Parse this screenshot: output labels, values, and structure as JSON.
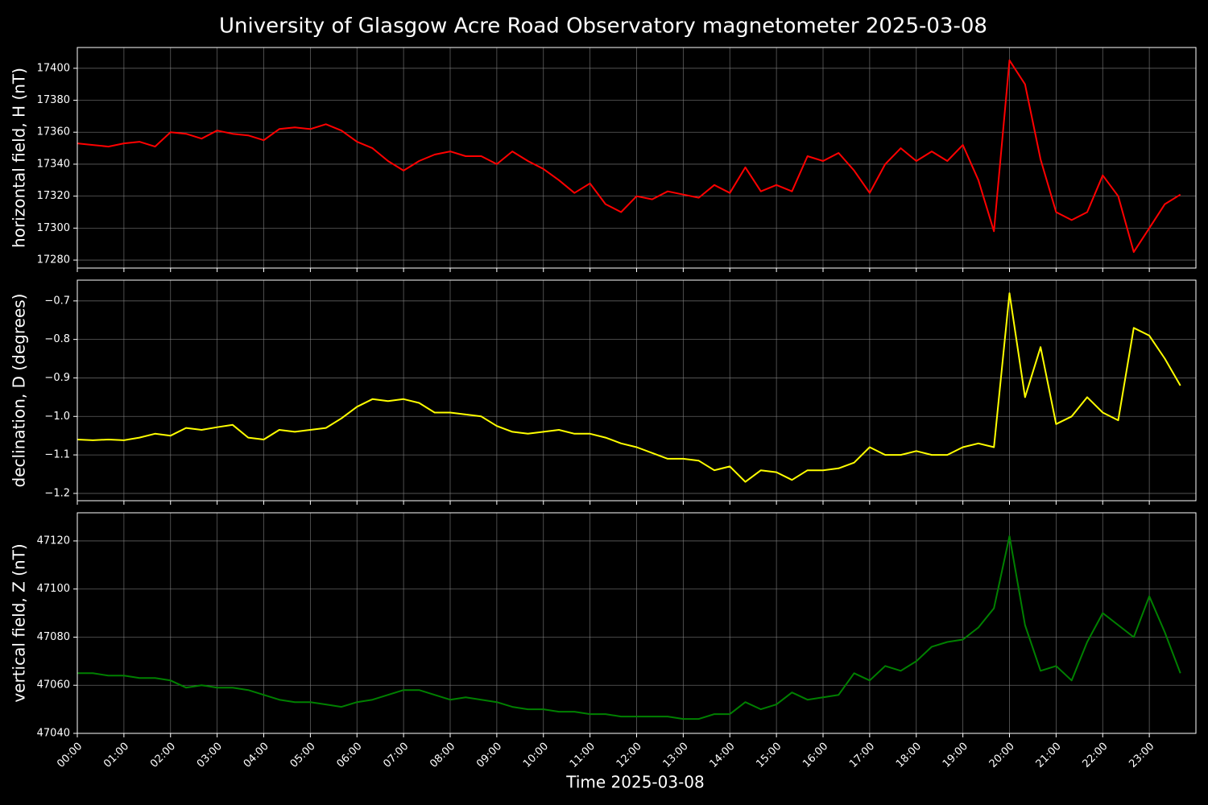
{
  "chart_data": [
    {
      "type": "line",
      "title": "University of Glasgow Acre Road Observatory magnetometer 2025-03-08",
      "y_label": "horizontal field, H (nT)",
      "color": "#ff0000",
      "grid": true,
      "xlim": [
        "00:00",
        "24:00"
      ],
      "ylim": [
        17275,
        17413
      ],
      "yticks": [
        17280,
        17300,
        17320,
        17340,
        17360,
        17380,
        17400
      ],
      "x": [
        "00:00",
        "00:20",
        "00:40",
        "01:00",
        "01:20",
        "01:40",
        "02:00",
        "02:20",
        "02:40",
        "03:00",
        "03:20",
        "03:40",
        "04:00",
        "04:20",
        "04:40",
        "05:00",
        "05:20",
        "05:40",
        "06:00",
        "06:20",
        "06:40",
        "07:00",
        "07:20",
        "07:40",
        "08:00",
        "08:20",
        "08:40",
        "09:00",
        "09:20",
        "09:40",
        "10:00",
        "10:20",
        "10:40",
        "11:00",
        "11:20",
        "11:40",
        "12:00",
        "12:20",
        "12:40",
        "13:00",
        "13:20",
        "13:40",
        "14:00",
        "14:20",
        "14:40",
        "15:00",
        "15:20",
        "15:40",
        "16:00",
        "16:20",
        "16:40",
        "17:00",
        "17:20",
        "17:40",
        "18:00",
        "18:20",
        "18:40",
        "19:00",
        "19:20",
        "19:40",
        "20:00",
        "20:20",
        "20:40",
        "21:00",
        "21:20",
        "21:40",
        "22:00",
        "22:20",
        "22:40",
        "23:00",
        "23:20",
        "23:40"
      ],
      "values": [
        17353,
        17352,
        17351,
        17353,
        17354,
        17351,
        17360,
        17359,
        17356,
        17361,
        17359,
        17358,
        17355,
        17362,
        17363,
        17362,
        17365,
        17361,
        17354,
        17350,
        17342,
        17336,
        17342,
        17346,
        17348,
        17345,
        17345,
        17340,
        17348,
        17342,
        17337,
        17330,
        17322,
        17328,
        17315,
        17310,
        17320,
        17318,
        17323,
        17321,
        17319,
        17327,
        17322,
        17338,
        17323,
        17327,
        17323,
        17345,
        17342,
        17347,
        17336,
        17322,
        17340,
        17350,
        17342,
        17348,
        17342,
        17352,
        17330,
        17298,
        17405,
        17390,
        17343,
        17310,
        17305,
        17310,
        17333,
        17320,
        17285,
        17300,
        17315,
        17321
      ]
    },
    {
      "type": "line",
      "y_label": "declination, D (degrees)",
      "color": "#ffff00",
      "grid": true,
      "xlim": [
        "00:00",
        "24:00"
      ],
      "ylim": [
        -1.219,
        -0.646
      ],
      "yticks": [
        {
          "value": -1.2,
          "label": "−1.2"
        },
        {
          "value": -1.1,
          "label": "−1.1"
        },
        {
          "value": -1.0,
          "label": "−1.0"
        },
        {
          "value": -0.9,
          "label": "−0.9"
        },
        {
          "value": -0.8,
          "label": "−0.8"
        },
        {
          "value": -0.7,
          "label": "−0.7"
        }
      ],
      "x": [
        "00:00",
        "00:20",
        "00:40",
        "01:00",
        "01:20",
        "01:40",
        "02:00",
        "02:20",
        "02:40",
        "03:00",
        "03:20",
        "03:40",
        "04:00",
        "04:20",
        "04:40",
        "05:00",
        "05:20",
        "05:40",
        "06:00",
        "06:20",
        "06:40",
        "07:00",
        "07:20",
        "07:40",
        "08:00",
        "08:20",
        "08:40",
        "09:00",
        "09:20",
        "09:40",
        "10:00",
        "10:20",
        "10:40",
        "11:00",
        "11:20",
        "11:40",
        "12:00",
        "12:20",
        "12:40",
        "13:00",
        "13:20",
        "13:40",
        "14:00",
        "14:20",
        "14:40",
        "15:00",
        "15:20",
        "15:40",
        "16:00",
        "16:20",
        "16:40",
        "17:00",
        "17:20",
        "17:40",
        "18:00",
        "18:20",
        "18:40",
        "19:00",
        "19:20",
        "19:40",
        "20:00",
        "20:20",
        "20:40",
        "21:00",
        "21:20",
        "21:40",
        "22:00",
        "22:20",
        "22:40",
        "23:00",
        "23:20",
        "23:40"
      ],
      "values": [
        -1.06,
        -1.062,
        -1.06,
        -1.062,
        -1.055,
        -1.045,
        -1.05,
        -1.03,
        -1.035,
        -1.028,
        -1.022,
        -1.055,
        -1.06,
        -1.035,
        -1.04,
        -1.035,
        -1.03,
        -1.005,
        -0.975,
        -0.955,
        -0.96,
        -0.955,
        -0.965,
        -0.99,
        -0.99,
        -0.995,
        -1.0,
        -1.025,
        -1.04,
        -1.045,
        -1.04,
        -1.035,
        -1.045,
        -1.045,
        -1.055,
        -1.07,
        -1.08,
        -1.095,
        -1.11,
        -1.11,
        -1.115,
        -1.14,
        -1.13,
        -1.17,
        -1.14,
        -1.145,
        -1.165,
        -1.14,
        -1.14,
        -1.135,
        -1.12,
        -1.08,
        -1.1,
        -1.1,
        -1.09,
        -1.1,
        -1.1,
        -1.08,
        -1.07,
        -1.08,
        -0.68,
        -0.95,
        -0.82,
        -1.02,
        -1.0,
        -0.95,
        -0.99,
        -1.01,
        -0.77,
        -0.79,
        -0.85,
        -0.92
      ]
    },
    {
      "type": "line",
      "y_label": "vertical field, Z (nT)",
      "x_label": "Time 2025-03-08",
      "color": "#008000",
      "grid": true,
      "xlim": [
        "00:00",
        "24:00"
      ],
      "ylim": [
        47040,
        47131.7
      ],
      "yticks": [
        47040,
        47060,
        47080,
        47100,
        47120
      ],
      "xticks": [
        "00:00",
        "01:00",
        "02:00",
        "03:00",
        "04:00",
        "05:00",
        "06:00",
        "07:00",
        "08:00",
        "09:00",
        "10:00",
        "11:00",
        "12:00",
        "13:00",
        "14:00",
        "15:00",
        "16:00",
        "17:00",
        "18:00",
        "19:00",
        "20:00",
        "21:00",
        "22:00",
        "23:00"
      ],
      "x": [
        "00:00",
        "00:20",
        "00:40",
        "01:00",
        "01:20",
        "01:40",
        "02:00",
        "02:20",
        "02:40",
        "03:00",
        "03:20",
        "03:40",
        "04:00",
        "04:20",
        "04:40",
        "05:00",
        "05:20",
        "05:40",
        "06:00",
        "06:20",
        "06:40",
        "07:00",
        "07:20",
        "07:40",
        "08:00",
        "08:20",
        "08:40",
        "09:00",
        "09:20",
        "09:40",
        "10:00",
        "10:20",
        "10:40",
        "11:00",
        "11:20",
        "11:40",
        "12:00",
        "12:20",
        "12:40",
        "13:00",
        "13:20",
        "13:40",
        "14:00",
        "14:20",
        "14:40",
        "15:00",
        "15:20",
        "15:40",
        "16:00",
        "16:20",
        "16:40",
        "17:00",
        "17:20",
        "17:40",
        "18:00",
        "18:20",
        "18:40",
        "19:00",
        "19:20",
        "19:40",
        "20:00",
        "20:20",
        "20:40",
        "21:00",
        "21:20",
        "21:40",
        "22:00",
        "22:20",
        "22:40",
        "23:00",
        "23:20",
        "23:40"
      ],
      "values": [
        47065,
        47065,
        47064,
        47064,
        47063,
        47063,
        47062,
        47059,
        47060,
        47059,
        47059,
        47058,
        47056,
        47054,
        47053,
        47053,
        47052,
        47051,
        47053,
        47054,
        47056,
        47058,
        47058,
        47056,
        47054,
        47055,
        47054,
        47053,
        47051,
        47050,
        47050,
        47049,
        47049,
        47048,
        47048,
        47047,
        47047,
        47047,
        47047,
        47046,
        47046,
        47048,
        47048,
        47053,
        47050,
        47052,
        47057,
        47054,
        47055,
        47056,
        47065,
        47062,
        47068,
        47066,
        47070,
        47076,
        47078,
        47079,
        47084,
        47092,
        47122,
        47085,
        47066,
        47068,
        47062,
        47078,
        47090,
        47085,
        47080,
        47097,
        47082,
        47065
      ]
    }
  ]
}
